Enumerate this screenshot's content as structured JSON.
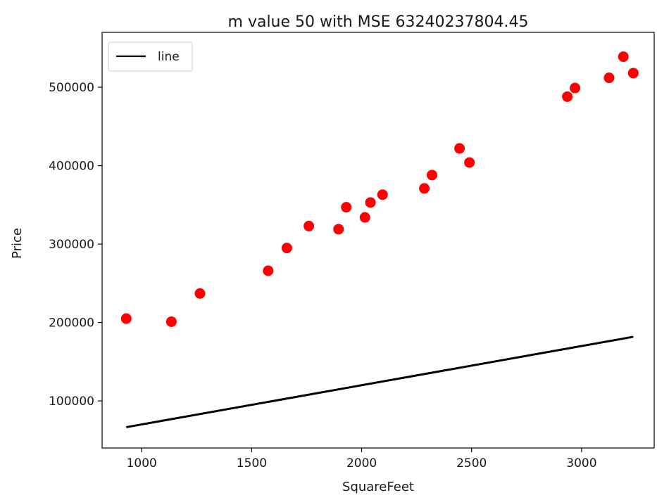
{
  "chart_data": {
    "type": "scatter",
    "title": "m value 50 with MSE 63240237804.45",
    "xlabel": "SquareFeet",
    "ylabel": "Price",
    "xlim": [
      820,
      3330
    ],
    "ylim": [
      40000,
      570000
    ],
    "xticks": [
      1000,
      1500,
      2000,
      2500,
      3000
    ],
    "yticks": [
      100000,
      200000,
      300000,
      400000,
      500000
    ],
    "grid": false,
    "legend_position": "upper left",
    "series": [
      {
        "kind": "scatter",
        "color": "#ff0000",
        "points": [
          [
            930,
            205000
          ],
          [
            1135,
            201000
          ],
          [
            1265,
            237000
          ],
          [
            1575,
            266000
          ],
          [
            1660,
            295000
          ],
          [
            1760,
            323000
          ],
          [
            1895,
            319000
          ],
          [
            1930,
            347000
          ],
          [
            2015,
            334000
          ],
          [
            2040,
            353000
          ],
          [
            2095,
            363000
          ],
          [
            2285,
            371000
          ],
          [
            2320,
            388000
          ],
          [
            2445,
            422000
          ],
          [
            2490,
            404000
          ],
          [
            2935,
            488000
          ],
          [
            2970,
            499000
          ],
          [
            3125,
            512000
          ],
          [
            3190,
            539000
          ],
          [
            3235,
            518000
          ]
        ]
      },
      {
        "name": "line",
        "kind": "line",
        "color": "#000000",
        "points": [
          [
            930,
            66500
          ],
          [
            3235,
            181750
          ]
        ]
      }
    ]
  }
}
